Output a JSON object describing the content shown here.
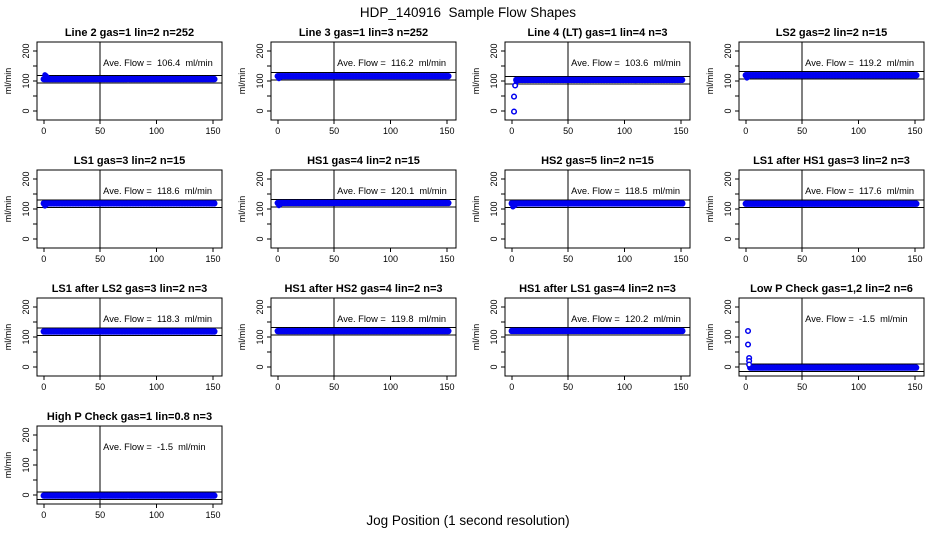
{
  "figure": {
    "title": "HDP_140916  Sample Flow Shapes",
    "xlabel": "Jog Position (1 second resolution)",
    "ylabel": "ml/min",
    "point_color": "#0101F0",
    "background_color": "#FFFFFF"
  },
  "axes": {
    "xlim": [
      -6,
      158
    ],
    "ylim": [
      -30,
      230
    ],
    "xticks": [
      0,
      50,
      100,
      150
    ],
    "yticks": [
      0,
      50,
      100,
      150,
      200
    ],
    "yticks_labeled": [
      0,
      100,
      200
    ],
    "vline_x": 50,
    "hline_offsets": [
      12,
      -13
    ],
    "grid": false
  },
  "chart_data": [
    {
      "type": "scatter",
      "title": "Line 2 gas=1 lin=2 n=252",
      "n": 252,
      "ave_flow": 106.4,
      "ave_label": "Ave. Flow =  106.4  ml/min",
      "band": {
        "x_start": 0,
        "x_end": 152,
        "y": 106.4
      },
      "startup_dots": [
        [
          1,
          121
        ],
        [
          2,
          118
        ],
        [
          3,
          114
        ]
      ],
      "startup_rings": []
    },
    {
      "type": "scatter",
      "title": "Line 3 gas=1 lin=3 n=252",
      "n": 252,
      "ave_flow": 116.2,
      "ave_label": "Ave. Flow =  116.2  ml/min",
      "band": {
        "x_start": 0,
        "x_end": 152,
        "y": 116.2
      },
      "startup_dots": [
        [
          1,
          108
        ],
        [
          2,
          111
        ]
      ],
      "startup_rings": []
    },
    {
      "type": "scatter",
      "title": "Line 4 (LT) gas=1 lin=4 n=3",
      "n": 3,
      "ave_flow": 103.6,
      "ave_label": "Ave. Flow =  103.6  ml/min",
      "band": {
        "x_start": 4,
        "x_end": 152,
        "y": 103.6
      },
      "startup_dots": [
        [
          4,
          97
        ]
      ],
      "startup_rings": [
        [
          2,
          -2
        ],
        [
          2,
          48
        ],
        [
          3,
          85
        ]
      ]
    },
    {
      "type": "scatter",
      "title": "LS2 gas=2 lin=2 n=15",
      "n": 15,
      "ave_flow": 119.2,
      "ave_label": "Ave. Flow =  119.2  ml/min",
      "band": {
        "x_start": 0,
        "x_end": 152,
        "y": 119.2
      },
      "startup_dots": [
        [
          1,
          110
        ],
        [
          2,
          113
        ]
      ],
      "startup_rings": []
    },
    {
      "type": "scatter",
      "title": "LS1 gas=3 lin=2 n=15",
      "n": 15,
      "ave_flow": 118.6,
      "ave_label": "Ave. Flow =  118.6  ml/min",
      "band": {
        "x_start": 0,
        "x_end": 152,
        "y": 118.6
      },
      "startup_dots": [
        [
          1,
          110
        ],
        [
          2,
          113
        ]
      ],
      "startup_rings": []
    },
    {
      "type": "scatter",
      "title": "HS1 gas=4 lin=2 n=15",
      "n": 15,
      "ave_flow": 120.1,
      "ave_label": "Ave. Flow =  120.1  ml/min",
      "band": {
        "x_start": 0,
        "x_end": 152,
        "y": 120.1
      },
      "startup_dots": [
        [
          1,
          111
        ],
        [
          2,
          114
        ]
      ],
      "startup_rings": []
    },
    {
      "type": "scatter",
      "title": "HS2 gas=5 lin=2 n=15",
      "n": 15,
      "ave_flow": 118.5,
      "ave_label": "Ave. Flow =  118.5  ml/min",
      "band": {
        "x_start": 0,
        "x_end": 152,
        "y": 118.5
      },
      "startup_dots": [
        [
          1,
          107
        ],
        [
          2,
          110
        ],
        [
          3,
          112
        ]
      ],
      "startup_rings": []
    },
    {
      "type": "scatter",
      "title": "LS1 after HS1 gas=3 lin=2 n=3",
      "n": 3,
      "ave_flow": 117.6,
      "ave_label": "Ave. Flow =  117.6  ml/min",
      "band": {
        "x_start": 0,
        "x_end": 152,
        "y": 117.6
      },
      "startup_dots": [],
      "startup_rings": []
    },
    {
      "type": "scatter",
      "title": "LS1 after LS2 gas=3 lin=2 n=3",
      "n": 3,
      "ave_flow": 118.3,
      "ave_label": "Ave. Flow =  118.3  ml/min",
      "band": {
        "x_start": 0,
        "x_end": 152,
        "y": 118.3
      },
      "startup_dots": [],
      "startup_rings": []
    },
    {
      "type": "scatter",
      "title": "HS1 after HS2 gas=4 lin=2 n=3",
      "n": 3,
      "ave_flow": 119.8,
      "ave_label": "Ave. Flow =  119.8  ml/min",
      "band": {
        "x_start": 0,
        "x_end": 152,
        "y": 119.8
      },
      "startup_dots": [],
      "startup_rings": []
    },
    {
      "type": "scatter",
      "title": "HS1 after LS1 gas=4 lin=2 n=3",
      "n": 3,
      "ave_flow": 120.2,
      "ave_label": "Ave. Flow =  120.2  ml/min",
      "band": {
        "x_start": 0,
        "x_end": 152,
        "y": 120.2
      },
      "startup_dots": [],
      "startup_rings": []
    },
    {
      "type": "scatter",
      "title": "Low P Check gas=1,2 lin=2 n=6",
      "n": 6,
      "ave_flow": -1.5,
      "ave_label": "Ave. Flow =  -1.5  ml/min",
      "band": {
        "x_start": 4,
        "x_end": 152,
        "y": -2
      },
      "startup_dots": [],
      "startup_rings": [
        [
          2,
          120
        ],
        [
          2,
          75
        ],
        [
          3,
          30
        ],
        [
          3,
          20
        ],
        [
          3,
          8
        ]
      ]
    },
    {
      "type": "scatter",
      "title": "High P Check gas=1 lin=0.8 n=3",
      "n": 3,
      "ave_flow": -1.5,
      "ave_label": "Ave. Flow =  -1.5  ml/min",
      "band": {
        "x_start": 0,
        "x_end": 152,
        "y": -2
      },
      "startup_dots": [],
      "startup_rings": []
    }
  ]
}
